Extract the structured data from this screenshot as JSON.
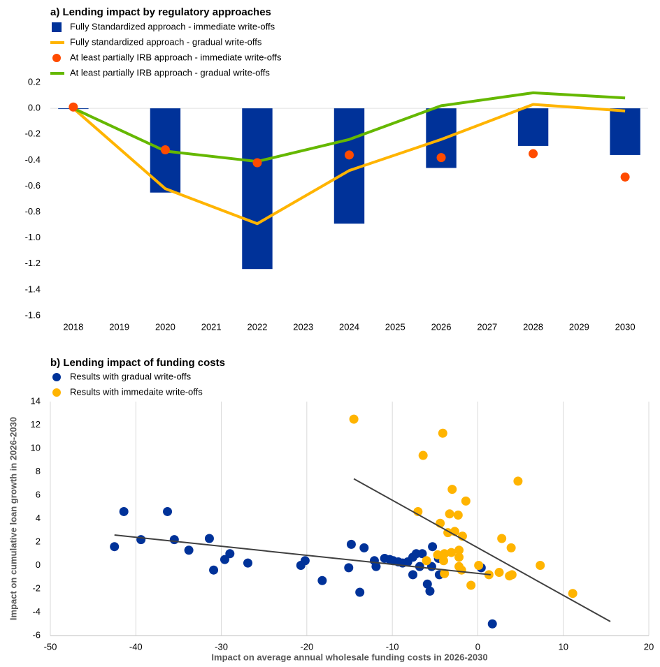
{
  "chart_data": [
    {
      "type": "combo",
      "title": "a) Lending impact by regulatory approaches",
      "x": [
        2018,
        2020,
        2022,
        2024,
        2026,
        2028,
        2030
      ],
      "xlim": [
        2017.5,
        2030.5
      ],
      "xticks": [
        2018,
        2019,
        2020,
        2021,
        2022,
        2023,
        2024,
        2025,
        2026,
        2027,
        2028,
        2029,
        2030
      ],
      "ylim": [
        -1.6,
        0.2
      ],
      "yticks": [
        -1.6,
        -1.4,
        -1.2,
        {
          "value": -1,
          "label": "-1.0"
        },
        -0.8,
        -0.6,
        -0.4,
        -0.2,
        {
          "value": 0,
          "label": "0.0"
        },
        0.2
      ],
      "series": [
        {
          "name": "Fully Standardized approach - immediate write-offs",
          "color": "#003299",
          "kind": "bar",
          "values": [
            0,
            -0.65,
            -1.24,
            -0.89,
            -0.46,
            -0.29,
            -0.36
          ]
        },
        {
          "name": "Fully standardized approach - gradual write-offs",
          "color": "#ffb400",
          "kind": "line",
          "values": [
            0,
            -0.62,
            -0.89,
            -0.48,
            -0.24,
            0.03,
            -0.02
          ]
        },
        {
          "name": "At least partially IRB approach - immediate write-offs",
          "color": "#ff4b00",
          "kind": "marker",
          "values": [
            0.01,
            -0.32,
            -0.42,
            -0.36,
            -0.38,
            -0.35,
            -0.53
          ]
        },
        {
          "name": "At least partially IRB approach - gradual write-offs",
          "color": "#65b800",
          "kind": "line",
          "values": [
            0,
            -0.33,
            -0.41,
            -0.24,
            0.02,
            0.12,
            0.08
          ]
        }
      ]
    },
    {
      "type": "scatter",
      "title": "b) Lending impact of funding costs",
      "xlabel": "Impact on average annual wholesale funding costs in 2026-2030",
      "ylabel": "Impact on cumulative loan growth in 2026-2030",
      "xlim": [
        -50,
        20
      ],
      "xticks": [
        -50,
        -40,
        -30,
        -20,
        -10,
        0,
        10,
        20
      ],
      "ylim": [
        -6,
        14
      ],
      "yticks": [
        -6,
        -4,
        -2,
        0,
        2,
        4,
        6,
        8,
        10,
        12,
        14
      ],
      "grid": true,
      "trend_color": "#404040",
      "series": [
        {
          "name": "Results with gradual write-offs",
          "color": "#003299",
          "x": [
            -42.5,
            -41.4,
            -39.4,
            -36.3,
            -35.5,
            -33.8,
            -31.4,
            -30.9,
            -29.6,
            -29.0,
            -26.9,
            -20.7,
            -20.2,
            -18.2,
            -15.1,
            -14.8,
            -13.8,
            -13.3,
            -12.1,
            -11.9,
            -10.9,
            -10.3,
            -9.9,
            -9.3,
            -8.8,
            -8.2,
            -7.6,
            -7.2,
            -6.5,
            -5.9,
            -5.6,
            -5.3,
            -5.4,
            -7.6,
            -6.8,
            -4.5,
            -4.6,
            0.4,
            1.7
          ],
          "values": [
            1.6,
            4.6,
            2.2,
            4.6,
            2.2,
            1.3,
            2.3,
            -0.4,
            0.5,
            1.0,
            0.2,
            0.0,
            0.4,
            -1.3,
            -0.2,
            1.8,
            -2.3,
            1.5,
            0.4,
            -0.1,
            0.6,
            0.5,
            0.4,
            0.3,
            0.2,
            0.3,
            0.7,
            1.0,
            1.0,
            -1.6,
            -2.2,
            1.6,
            -0.1,
            -0.8,
            -0.1,
            -0.8,
            0.6,
            -0.2,
            -5.0
          ],
          "trend": {
            "x": [
              -42.5,
              1.5
            ],
            "y": [
              2.6,
              -0.8
            ]
          }
        },
        {
          "name": "Results with immedaite write-offs",
          "color": "#ffb400",
          "x": [
            -14.5,
            -4.1,
            -6.4,
            4.7,
            -3.0,
            -1.4,
            -7.0,
            -4.4,
            -3.3,
            -2.3,
            -3.5,
            -2.7,
            -1.8,
            2.8,
            3.9,
            -4.7,
            -3.9,
            -3.1,
            -2.2,
            -2.2,
            -4.0,
            -6.0,
            0.1,
            -2.2,
            -1.9,
            -3.9,
            2.5,
            4.0,
            3.7,
            1.3,
            -0.8,
            7.3,
            11.1
          ],
          "values": [
            12.5,
            11.3,
            9.4,
            7.2,
            6.5,
            5.5,
            4.6,
            3.6,
            4.4,
            4.3,
            2.8,
            2.9,
            2.5,
            2.3,
            1.5,
            0.9,
            1.0,
            1.1,
            1.3,
            0.7,
            0.4,
            0.4,
            0.0,
            -0.1,
            -0.4,
            -0.7,
            -0.6,
            -0.8,
            -0.9,
            -0.8,
            -1.7,
            0.0,
            -2.4
          ],
          "trend": {
            "x": [
              -14.5,
              15.5
            ],
            "y": [
              7.4,
              -4.8
            ]
          }
        }
      ]
    }
  ]
}
